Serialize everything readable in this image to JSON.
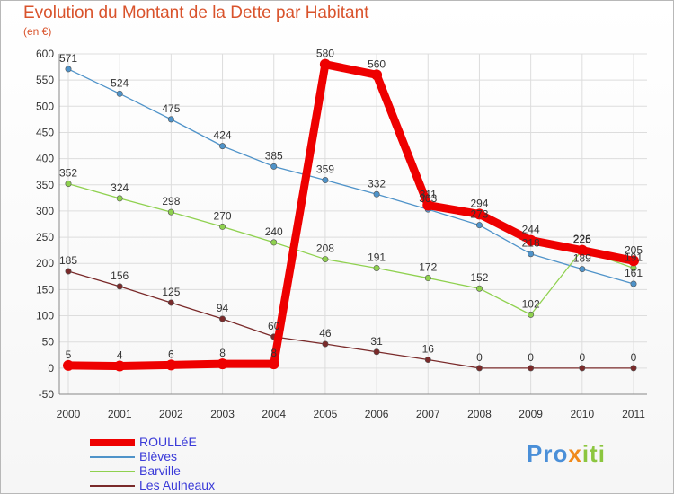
{
  "chart_data": {
    "type": "line",
    "title": "Evolution du Montant de la Dette par Habitant",
    "subtitle": "(en €)",
    "categories": [
      "2000",
      "2001",
      "2002",
      "2003",
      "2004",
      "2005",
      "2006",
      "2007",
      "2008",
      "2009",
      "2010",
      "2011"
    ],
    "ylim": [
      -50,
      600
    ],
    "yticks": [
      -50,
      0,
      50,
      100,
      150,
      200,
      250,
      300,
      350,
      400,
      450,
      500,
      550,
      600
    ],
    "grid": true,
    "series": [
      {
        "name": "ROULLéE",
        "color": "#ee0000",
        "values": [
          5,
          4,
          6,
          8,
          8,
          580,
          560,
          311,
          294,
          244,
          225,
          205
        ]
      },
      {
        "name": "Blèves",
        "color": "#4f93c9",
        "values": [
          571,
          524,
          475,
          424,
          385,
          359,
          332,
          303,
          273,
          218,
          189,
          161
        ]
      },
      {
        "name": "Barville",
        "color": "#8fd14f",
        "values": [
          352,
          324,
          298,
          270,
          240,
          208,
          191,
          172,
          152,
          102,
          226,
          191
        ]
      },
      {
        "name": "Les Aulneaux",
        "color": "#7a2a2a",
        "values": [
          185,
          156,
          125,
          94,
          60,
          46,
          31,
          16,
          0,
          0,
          0,
          0
        ]
      }
    ]
  },
  "logo": {
    "parts": [
      "Pro",
      "x",
      "iti"
    ],
    "colors": [
      "#4a8fd8",
      "#f08a1c",
      "#8cc63f"
    ]
  }
}
